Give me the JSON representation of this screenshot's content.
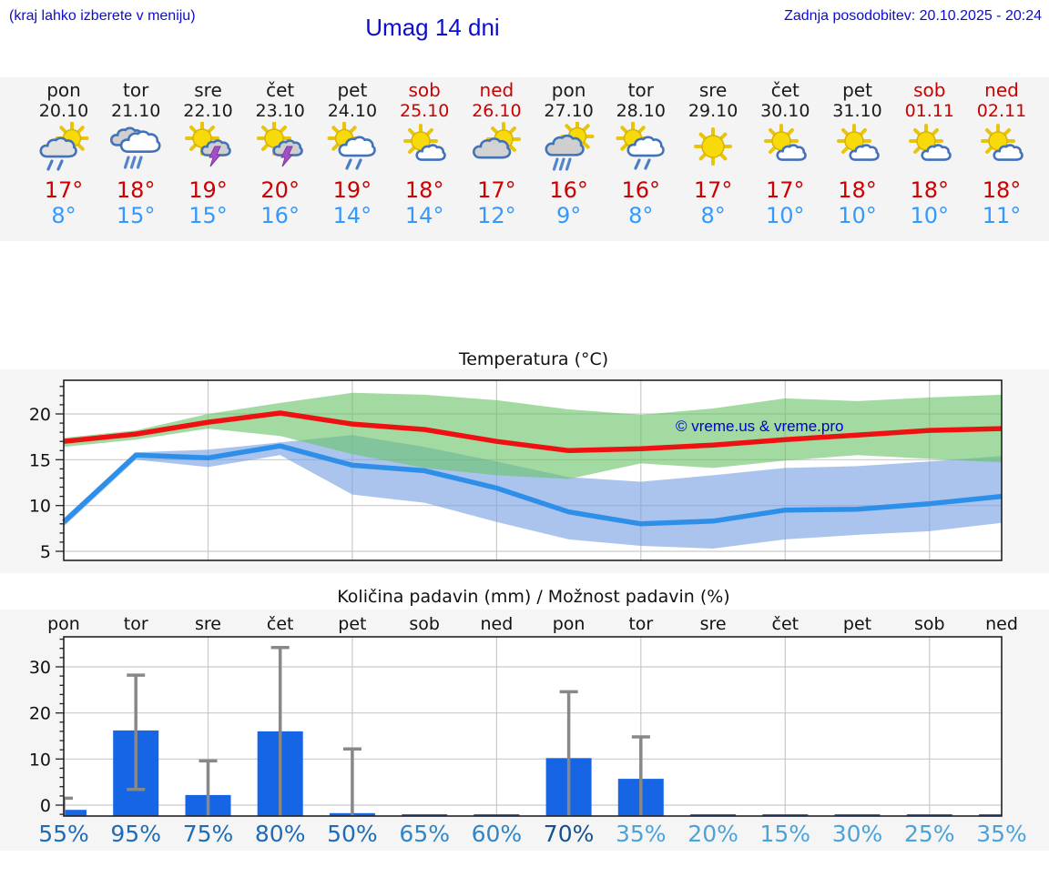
{
  "header": {
    "hint": "(kraj lahko izberete v meniju)",
    "title": "Umag 14 dni",
    "updated": "Zadnja posodobitev: 20.10.2025 - 20:24"
  },
  "colors": {
    "header_text": "#0d0dcf",
    "weekend": "#cc0000",
    "high_temp": "#cc0000",
    "low_temp": "#3399ff",
    "panel_bg": "#f5f5f5",
    "max_line": "#ee1111",
    "min_line": "#2e8fe8",
    "max_band": "#69c369",
    "min_band": "#78a0e3",
    "bar": "#1565e5",
    "error_bar": "#888888"
  },
  "days": [
    {
      "name": "pon",
      "date": "20.10",
      "weekend": false,
      "icon": "cloud-rain-sun",
      "high": "17°",
      "low": "8°"
    },
    {
      "name": "tor",
      "date": "21.10",
      "weekend": false,
      "icon": "heavy-rain",
      "high": "18°",
      "low": "15°"
    },
    {
      "name": "sre",
      "date": "22.10",
      "weekend": false,
      "icon": "sun-storm",
      "high": "19°",
      "low": "15°"
    },
    {
      "name": "čet",
      "date": "23.10",
      "weekend": false,
      "icon": "sun-storm",
      "high": "20°",
      "low": "16°"
    },
    {
      "name": "pet",
      "date": "24.10",
      "weekend": false,
      "icon": "sun-cloud-rain",
      "high": "19°",
      "low": "14°"
    },
    {
      "name": "sob",
      "date": "25.10",
      "weekend": true,
      "icon": "sun-small-cloud",
      "high": "18°",
      "low": "14°"
    },
    {
      "name": "ned",
      "date": "26.10",
      "weekend": true,
      "icon": "cloud-sun",
      "high": "17°",
      "low": "12°"
    },
    {
      "name": "pon",
      "date": "27.10",
      "weekend": false,
      "icon": "sun-heavy-rain",
      "high": "16°",
      "low": "9°"
    },
    {
      "name": "tor",
      "date": "28.10",
      "weekend": false,
      "icon": "sun-cloud-rain",
      "high": "16°",
      "low": "8°"
    },
    {
      "name": "sre",
      "date": "29.10",
      "weekend": false,
      "icon": "sunny",
      "high": "17°",
      "low": "8°"
    },
    {
      "name": "čet",
      "date": "30.10",
      "weekend": false,
      "icon": "sun-small-cloud",
      "high": "17°",
      "low": "10°"
    },
    {
      "name": "pet",
      "date": "31.10",
      "weekend": false,
      "icon": "sun-small-cloud",
      "high": "18°",
      "low": "10°"
    },
    {
      "name": "sob",
      "date": "01.11",
      "weekend": true,
      "icon": "sun-small-cloud",
      "high": "18°",
      "low": "10°"
    },
    {
      "name": "ned",
      "date": "02.11",
      "weekend": true,
      "icon": "sun-small-cloud",
      "high": "18°",
      "low": "11°"
    }
  ],
  "chart_data": [
    {
      "type": "line",
      "title": "Temperatura (°C)",
      "watermark": "© vreme.us & vreme.pro",
      "x_labels": [
        "pon 20.10",
        "tor 21.10",
        "sre 22.10",
        "čet 23.10",
        "pet 24.10",
        "sob 25.10",
        "ned 26.10",
        "pon 27.10",
        "tor 28.10",
        "sre 29.10",
        "čet 30.10",
        "pet 31.10",
        "sob 01.11",
        "ned 02.11"
      ],
      "yticks": [
        5,
        10,
        15,
        20
      ],
      "ylim": [
        4,
        23.7
      ],
      "grid": true,
      "legend": "none",
      "series": [
        {
          "name": "max-temperature",
          "color": "#ee1111",
          "values": [
            17,
            17.8,
            19.1,
            20.1,
            18.9,
            18.3,
            17,
            16,
            16.2,
            16.6,
            17.2,
            17.7,
            18.2,
            18.4
          ]
        },
        {
          "name": "min-temperature",
          "color": "#2e8fe8",
          "values": [
            8.2,
            15.5,
            15.2,
            16.5,
            14.4,
            13.8,
            11.9,
            9.3,
            8,
            8.3,
            9.5,
            9.6,
            10.2,
            11
          ]
        }
      ],
      "bands": [
        {
          "name": "max-temperature-range",
          "color": "#69c369",
          "upper": [
            17.4,
            18.2,
            20,
            21.2,
            22.3,
            22.1,
            21.5,
            20.5,
            19.9,
            20.6,
            21.7,
            21.4,
            21.8,
            22.1
          ],
          "lower": [
            16.4,
            17.2,
            18.4,
            17.6,
            15.6,
            14.1,
            13.3,
            12.9,
            14.6,
            14.1,
            14.9,
            15.5,
            15.1,
            14.7
          ]
        },
        {
          "name": "min-temperature-range",
          "color": "#78a0e3",
          "upper": [
            8.6,
            15.8,
            16.1,
            16.9,
            17.7,
            16.4,
            14.8,
            13.1,
            12.6,
            13.3,
            14.1,
            14.3,
            14.8,
            15.4
          ],
          "lower": [
            7.7,
            15,
            14.2,
            15.5,
            11.2,
            10.3,
            8.2,
            6.3,
            5.6,
            5.3,
            6.3,
            6.8,
            7.2,
            8.1
          ]
        }
      ]
    },
    {
      "type": "bar",
      "title": "Količina padavin (mm) / Možnost padavin (%)",
      "categories": [
        "pon",
        "tor",
        "sre",
        "čet",
        "pet",
        "sob",
        "ned",
        "pon",
        "tor",
        "sre",
        "čet",
        "pet",
        "sob",
        "ned"
      ],
      "yticks": [
        0,
        10,
        20,
        30
      ],
      "ylim": [
        -2.4,
        36.5
      ],
      "grid": true,
      "bar_color": "#1565e5",
      "error_color": "#888888",
      "values": [
        0.4,
        16.2,
        2.2,
        16,
        0.1,
        0,
        0,
        10.2,
        5.7,
        0,
        0,
        0,
        0,
        0
      ],
      "error_bars": [
        {
          "hi": 1.5
        },
        {
          "lo": 3.4,
          "hi": 28.2
        },
        {
          "hi": 9.6
        },
        {
          "hi": 34.2
        },
        {
          "hi": 12.2
        },
        null,
        null,
        {
          "hi": 24.6
        },
        {
          "hi": 14.8
        },
        null,
        null,
        null,
        null,
        null
      ],
      "probabilities": [
        {
          "label": "55%",
          "color": "#1e6cb8"
        },
        {
          "label": "95%",
          "color": "#1e6cb8"
        },
        {
          "label": "75%",
          "color": "#1e6cb8"
        },
        {
          "label": "80%",
          "color": "#1e6cb8"
        },
        {
          "label": "50%",
          "color": "#1e6cb8"
        },
        {
          "label": "65%",
          "color": "#2f85c6"
        },
        {
          "label": "60%",
          "color": "#2f85c6"
        },
        {
          "label": "70%",
          "color": "#15518e"
        },
        {
          "label": "35%",
          "color": "#4ba3da"
        },
        {
          "label": "20%",
          "color": "#4ba3da"
        },
        {
          "label": "15%",
          "color": "#4ba3da"
        },
        {
          "label": "30%",
          "color": "#4ba3da"
        },
        {
          "label": "25%",
          "color": "#4ba3da"
        },
        {
          "label": "35%",
          "color": "#4ba3da"
        }
      ]
    }
  ]
}
